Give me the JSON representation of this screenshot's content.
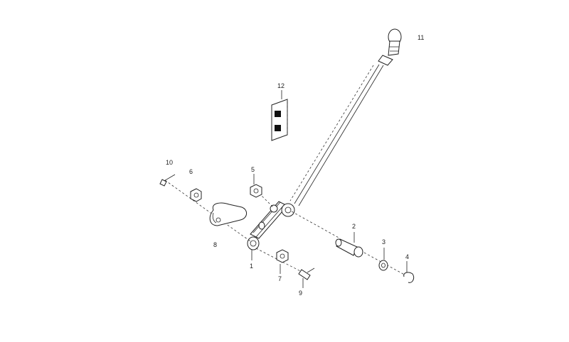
{
  "diagram": {
    "callouts": {
      "c1": "1",
      "c2": "2",
      "c3": "3",
      "c4": "4",
      "c5": "5",
      "c6": "6",
      "c7": "7",
      "c8": "8",
      "c9": "9",
      "c10": "10",
      "c11": "11",
      "c12": "12"
    }
  }
}
